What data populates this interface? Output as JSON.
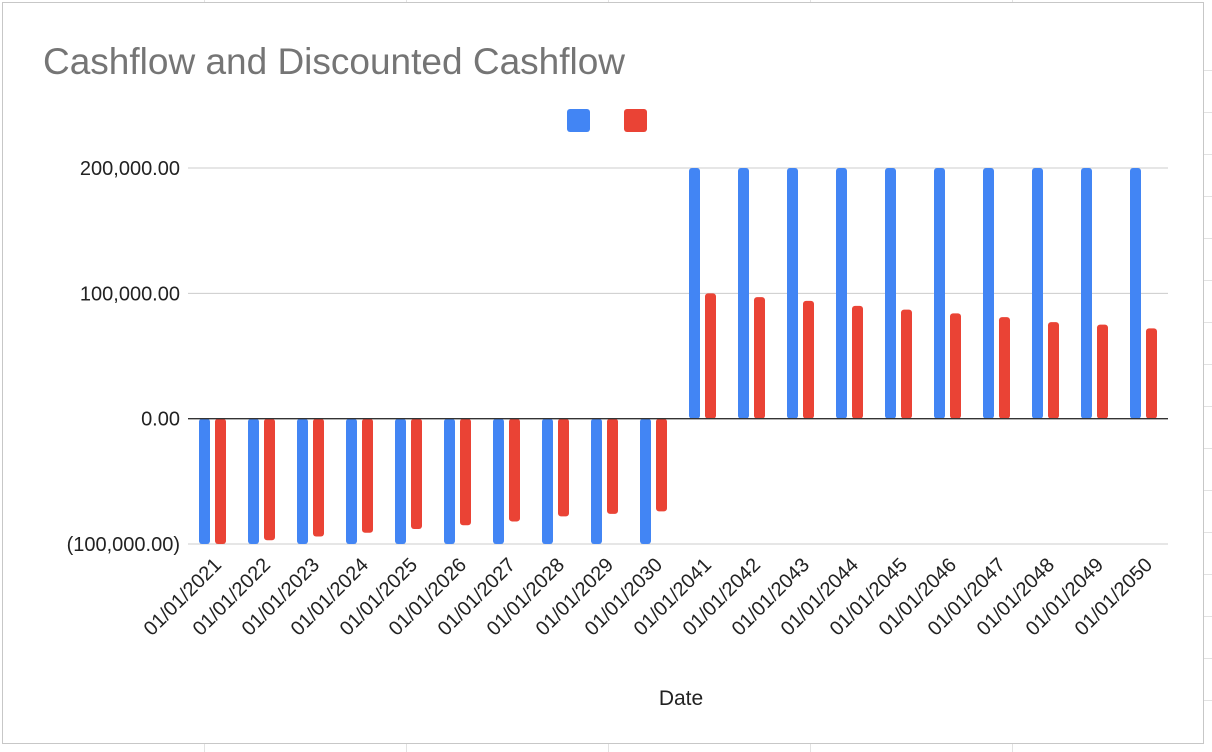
{
  "chart_data": {
    "type": "bar",
    "title": "Cashflow and Discounted Cashflow",
    "xlabel": "Date",
    "ylabel": "",
    "ylim": [
      -100000,
      200000
    ],
    "yticks": [
      200000,
      100000,
      0,
      -100000
    ],
    "ytick_labels": [
      "200,000.00",
      "100,000.00",
      "0.00",
      "(100,000.00)"
    ],
    "grid": true,
    "legend_position": "top",
    "categories": [
      "01/01/2021",
      "01/01/2022",
      "01/01/2023",
      "01/01/2024",
      "01/01/2025",
      "01/01/2026",
      "01/01/2027",
      "01/01/2028",
      "01/01/2029",
      "01/01/2030",
      "01/01/2041",
      "01/01/2042",
      "01/01/2043",
      "01/01/2044",
      "01/01/2045",
      "01/01/2046",
      "01/01/2047",
      "01/01/2048",
      "01/01/2049",
      "01/01/2050"
    ],
    "series": [
      {
        "color": "#4285f4",
        "values": [
          -100000,
          -100000,
          -100000,
          -100000,
          -100000,
          -100000,
          -100000,
          -100000,
          -100000,
          -100000,
          200000,
          200000,
          200000,
          200000,
          200000,
          200000,
          200000,
          200000,
          200000,
          200000
        ]
      },
      {
        "color": "#ea4335",
        "values": [
          -100000,
          -97000,
          -94000,
          -91000,
          -88000,
          -85000,
          -82000,
          -78000,
          -76000,
          -74000,
          100000,
          97000,
          94000,
          90000,
          87000,
          84000,
          81000,
          77000,
          75000,
          72000
        ]
      }
    ]
  }
}
